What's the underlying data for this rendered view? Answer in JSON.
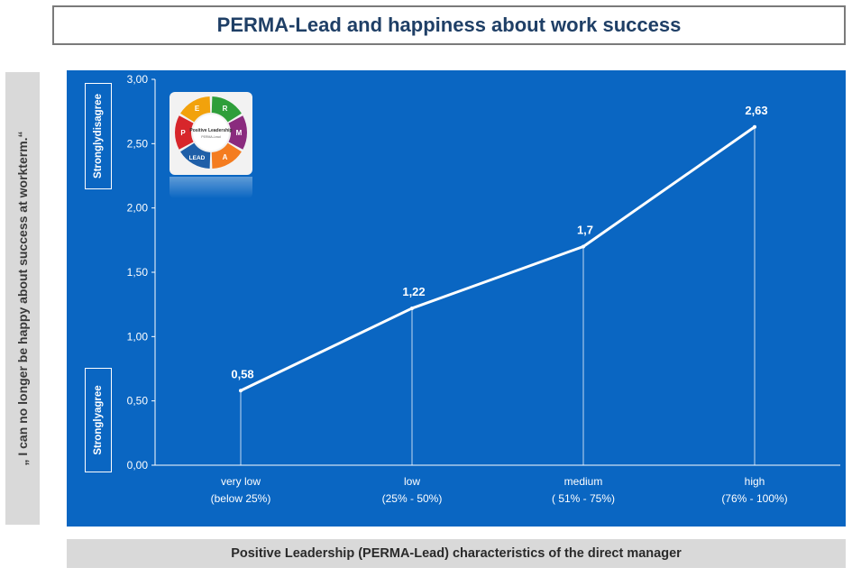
{
  "header": {
    "title": "PERMA-Lead and happiness about work success"
  },
  "side_label": "„ I can no longer be happy about success at workterm.“",
  "tags": {
    "top": "Stronglydisagree",
    "bottom": "Stronglyagree"
  },
  "footer": {
    "x_title": "Positive Leadership (PERMA-Lead) characteristics of the direct manager"
  },
  "logo": {
    "center_text": "Positive Leadership",
    "center_subtext": "PERMA-Lead",
    "segments": [
      "E",
      "R",
      "M",
      "A",
      "LEAD",
      "P"
    ],
    "segment_colors": [
      "#f2a20c",
      "#2e9e3a",
      "#8a2b7e",
      "#f47c20",
      "#1f5fa8",
      "#d7262b"
    ]
  },
  "colors": {
    "panel": "#0a66c2",
    "line": "#ffffff",
    "title_text": "#1f3f66"
  },
  "chart_data": {
    "type": "line",
    "title": "PERMA-Lead and happiness about work success",
    "xlabel": "Positive Leadership (PERMA-Lead) characteristics of the direct manager",
    "ylabel": "„ I can no longer be happy about success at workterm.“",
    "categories": [
      [
        "very low",
        "(below 25%)"
      ],
      [
        "low",
        "(25%  - 50%)"
      ],
      [
        "medium",
        "( 51%  - 75%)"
      ],
      [
        "high",
        "(76%  - 100%)"
      ]
    ],
    "values": [
      0.58,
      1.22,
      1.7,
      2.63
    ],
    "data_labels": [
      "0,58",
      "1,22",
      "1,7",
      "2,63"
    ],
    "ylim": [
      0,
      3
    ],
    "yticks": [
      "0,00",
      "0,50",
      "1,00",
      "1,50",
      "2,00",
      "2,50",
      "3,00"
    ],
    "drop_lines": true,
    "grid": false
  }
}
